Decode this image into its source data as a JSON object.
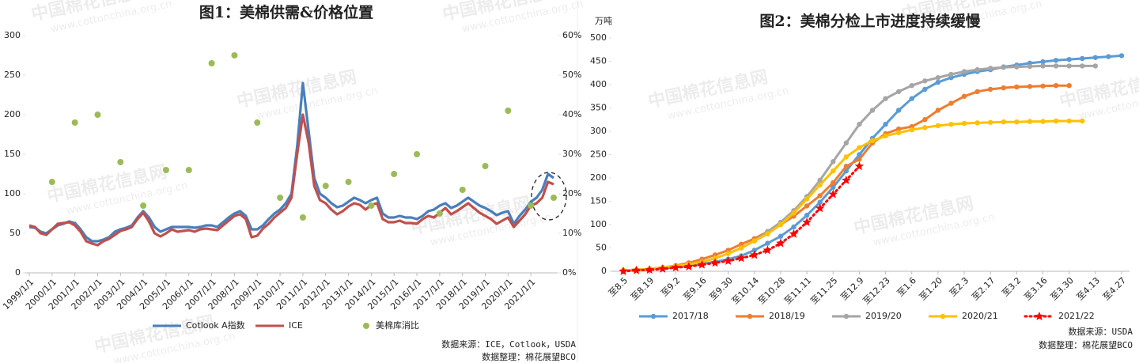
{
  "watermark": [
    "中国棉花信息网",
    "www.cottonchina.org.cn"
  ],
  "chart_data": [
    {
      "type": "line",
      "title": "图1：美棉供需&价格位置",
      "categories": [
        "1999/1/1",
        null,
        null,
        null,
        "2000/1/1",
        null,
        null,
        null,
        "2001/1/1",
        null,
        null,
        null,
        "2002/1/1",
        null,
        null,
        null,
        "2003/1/1",
        null,
        null,
        null,
        "2004/1/1",
        null,
        null,
        null,
        "2005/1/1",
        null,
        null,
        null,
        "2006/1/1",
        null,
        null,
        null,
        "2007/1/1",
        null,
        null,
        null,
        "2008/1/1",
        null,
        null,
        null,
        "2009/1/1",
        null,
        null,
        null,
        "2010/1/1",
        null,
        null,
        null,
        "2011/1/1",
        null,
        null,
        null,
        "2012/1/1",
        null,
        null,
        null,
        "2013/1/1",
        null,
        null,
        null,
        "2014/1/1",
        null,
        null,
        null,
        "2015/1/1",
        null,
        null,
        null,
        "2016/1/1",
        null,
        null,
        null,
        "2017/1/1",
        null,
        null,
        null,
        "2018/1/1",
        null,
        null,
        null,
        "2019/1/1",
        null,
        null,
        null,
        "2020/1/1",
        null,
        null,
        null,
        "2021/1/1",
        null,
        null,
        null,
        null
      ],
      "series": [
        {
          "name": "Cotlook A指数",
          "color": "#4a7ebb",
          "values": [
            58,
            57,
            52,
            50,
            55,
            60,
            62,
            65,
            63,
            55,
            45,
            40,
            40,
            42,
            45,
            52,
            55,
            57,
            60,
            70,
            78,
            70,
            58,
            52,
            55,
            58,
            58,
            58,
            58,
            57,
            58,
            60,
            60,
            58,
            64,
            70,
            75,
            78,
            72,
            55,
            55,
            60,
            68,
            75,
            80,
            88,
            100,
            160,
            240,
            180,
            120,
            100,
            95,
            88,
            83,
            85,
            90,
            95,
            92,
            88,
            92,
            95,
            75,
            70,
            70,
            72,
            70,
            70,
            68,
            72,
            78,
            80,
            85,
            88,
            82,
            85,
            90,
            95,
            90,
            85,
            82,
            78,
            73,
            76,
            78,
            62,
            72,
            80,
            90,
            95,
            105,
            125,
            120
          ]
        },
        {
          "name": "ICE",
          "color": "#c0504d",
          "values": [
            60,
            58,
            50,
            48,
            55,
            62,
            63,
            64,
            60,
            52,
            40,
            37,
            35,
            40,
            43,
            48,
            53,
            55,
            58,
            68,
            76,
            65,
            50,
            46,
            50,
            55,
            52,
            53,
            54,
            52,
            55,
            56,
            55,
            54,
            60,
            66,
            72,
            74,
            68,
            45,
            47,
            56,
            62,
            70,
            76,
            82,
            95,
            150,
            200,
            165,
            110,
            92,
            88,
            80,
            74,
            78,
            84,
            88,
            86,
            80,
            86,
            88,
            68,
            64,
            64,
            66,
            63,
            63,
            62,
            68,
            72,
            70,
            76,
            82,
            74,
            78,
            83,
            88,
            82,
            76,
            72,
            68,
            62,
            66,
            70,
            58,
            66,
            74,
            85,
            88,
            95,
            115,
            112
          ]
        },
        {
          "name": "美棉库消比",
          "color": "#9bbb59",
          "type": "scatter",
          "axis": "y2",
          "values": [
            null,
            null,
            null,
            null,
            23,
            null,
            null,
            null,
            38,
            null,
            null,
            null,
            40,
            null,
            null,
            null,
            28,
            null,
            null,
            null,
            17,
            null,
            null,
            null,
            26,
            null,
            null,
            null,
            26,
            null,
            null,
            null,
            53,
            null,
            null,
            null,
            55,
            null,
            null,
            null,
            38,
            null,
            null,
            null,
            19,
            null,
            null,
            null,
            14,
            null,
            null,
            null,
            22,
            null,
            null,
            null,
            23,
            null,
            null,
            null,
            17,
            null,
            null,
            null,
            25,
            null,
            null,
            null,
            30,
            null,
            null,
            null,
            15,
            null,
            null,
            null,
            21,
            null,
            null,
            null,
            27,
            null,
            null,
            null,
            41,
            null,
            null,
            null,
            17,
            null,
            null,
            null,
            19
          ]
        }
      ],
      "ylim": [
        0,
        300
      ],
      "yticks": [
        0,
        50,
        100,
        150,
        200,
        250,
        300
      ],
      "y2lim": [
        0,
        60
      ],
      "y2ticks": [
        {
          "value": 0,
          "label": "0%"
        },
        {
          "value": 10,
          "label": "10%"
        },
        {
          "value": 20,
          "label": "20%"
        },
        {
          "value": 30,
          "label": "30%"
        },
        {
          "value": 40,
          "label": "40%"
        },
        {
          "value": 50,
          "label": "50%"
        },
        {
          "value": 60,
          "label": "60%"
        }
      ],
      "grid": false,
      "legend": "bottom",
      "sources": [
        "数据来源：ICE，Cotlook，USDA",
        "数据整理：棉花展望BCO"
      ]
    },
    {
      "type": "line",
      "title": "图2：美棉分检上市进度持续缓慢",
      "y_label": "万吨",
      "categories": [
        "至8.5",
        null,
        "至8.19",
        null,
        "至9.2",
        null,
        "至9.16",
        null,
        "至9.30",
        null,
        "至10.14",
        null,
        "至10.28",
        null,
        "至11.11",
        null,
        "至11.25",
        null,
        "至12.9",
        null,
        "至12.23",
        null,
        "至1.6",
        null,
        "至1.20",
        null,
        "至2.3",
        null,
        "至2.17",
        null,
        "至3.2",
        null,
        "至3.16",
        null,
        "至3.30",
        null,
        "至4.13",
        null,
        "至4.27"
      ],
      "series": [
        {
          "name": "2017/18",
          "color": "#5b9bd5",
          "marker": "circle",
          "values": [
            2,
            3,
            5,
            7,
            9,
            12,
            16,
            20,
            26,
            33,
            45,
            60,
            75,
            95,
            120,
            148,
            180,
            215,
            250,
            285,
            315,
            345,
            370,
            390,
            405,
            415,
            422,
            428,
            432,
            438,
            442,
            446,
            449,
            452,
            454,
            456,
            458,
            460,
            462
          ]
        },
        {
          "name": "2018/19",
          "color": "#ed7d31",
          "marker": "circle",
          "values": [
            2,
            3,
            5,
            8,
            12,
            18,
            26,
            35,
            45,
            58,
            70,
            85,
            100,
            118,
            140,
            162,
            190,
            225,
            240,
            275,
            295,
            305,
            310,
            325,
            345,
            360,
            375,
            385,
            390,
            393,
            395,
            396,
            397,
            398,
            398,
            null,
            null,
            null,
            null
          ]
        },
        {
          "name": "2019/20",
          "color": "#a5a5a5",
          "marker": "circle",
          "values": [
            2,
            3,
            5,
            8,
            11,
            15,
            20,
            28,
            38,
            50,
            65,
            85,
            105,
            130,
            160,
            195,
            235,
            275,
            315,
            345,
            370,
            385,
            398,
            408,
            415,
            422,
            428,
            432,
            435,
            437,
            438,
            439,
            440,
            440,
            440,
            440,
            440,
            null,
            null
          ]
        },
        {
          "name": "2020/21",
          "color": "#ffc000",
          "marker": "circle",
          "values": [
            2,
            3,
            5,
            8,
            11,
            15,
            20,
            28,
            38,
            50,
            65,
            80,
            100,
            125,
            155,
            185,
            215,
            245,
            265,
            280,
            290,
            297,
            303,
            308,
            312,
            315,
            317,
            318,
            319,
            320,
            320,
            321,
            321,
            322,
            322,
            322,
            null,
            null,
            null
          ]
        },
        {
          "name": "2021/22",
          "color": "#ff0000",
          "marker": "star",
          "line_style": "dotted",
          "values": [
            0,
            2,
            3,
            5,
            8,
            10,
            14,
            18,
            22,
            28,
            35,
            45,
            60,
            80,
            105,
            135,
            165,
            195,
            225,
            null,
            null,
            null,
            null,
            null,
            null,
            null,
            null,
            null,
            null,
            null,
            null,
            null,
            null,
            null,
            null,
            null,
            null,
            null,
            null
          ]
        }
      ],
      "ylim": [
        0,
        500
      ],
      "yticks": [
        0,
        50,
        100,
        150,
        200,
        250,
        300,
        350,
        400,
        450,
        500
      ],
      "grid": false,
      "legend": "bottom",
      "sources": [
        "数据来源：USDA",
        "数据整理：棉花展望BCO"
      ]
    }
  ]
}
